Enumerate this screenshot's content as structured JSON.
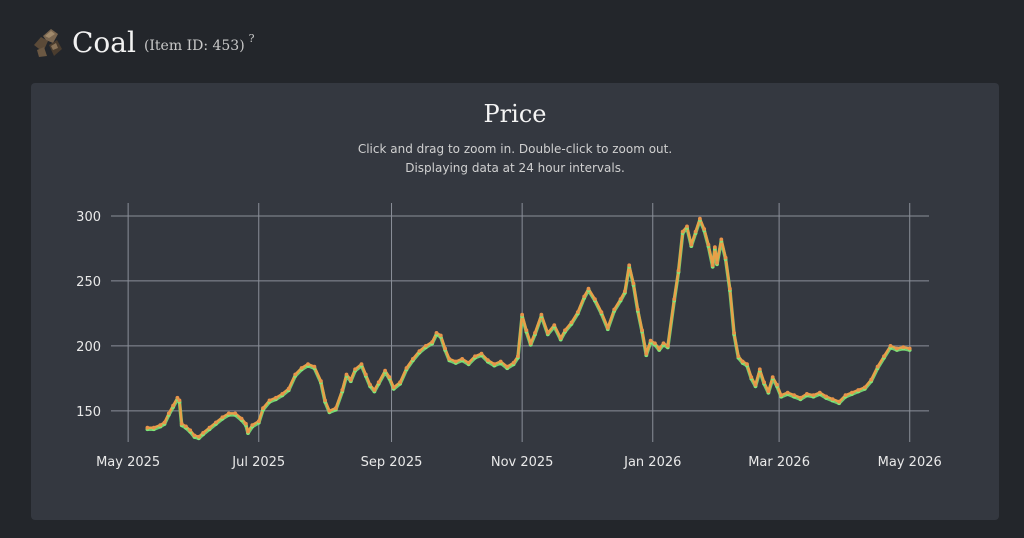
{
  "header": {
    "title": "Coal",
    "item_id_text": "(Item ID: 453)",
    "help": "?"
  },
  "panel": {
    "subtitle_line1": "Click and drag to zoom in. Double-click to zoom out.",
    "subtitle_line2": "Displaying data at 24 hour intervals."
  },
  "colors": {
    "page_bg": "#23262b",
    "panel_bg": "#343840",
    "grid": "#8a8f99",
    "line": "#e8a048",
    "marker_high": "#e8944a",
    "marker_low": "#7ee87a"
  },
  "chart_data": {
    "type": "line",
    "title": "Price",
    "xlabel": "",
    "ylabel": "",
    "ylim": [
      126,
      310
    ],
    "xlim": [
      "2025-04-23",
      "2026-05-10"
    ],
    "yticks": [
      150,
      200,
      250,
      300
    ],
    "ytick_labels": [
      "150",
      "200",
      "250",
      "300"
    ],
    "xticks": [
      "2025-05-01",
      "2025-07-01",
      "2025-09-01",
      "2025-11-01",
      "2026-01-01",
      "2026-03-01",
      "2026-05-01"
    ],
    "xtick_labels": [
      "May 2025",
      "Jul 2025",
      "Sep 2025",
      "Nov 2025",
      "Jan 2026",
      "Mar 2026",
      "May 2026"
    ],
    "grid": true,
    "legend": "none",
    "series": [
      {
        "points": [
          [
            "2025-05-10",
            137
          ],
          [
            "2025-05-13",
            137
          ],
          [
            "2025-05-16",
            139
          ],
          [
            "2025-05-18",
            141
          ],
          [
            "2025-05-20",
            148
          ],
          [
            "2025-05-22",
            154
          ],
          [
            "2025-05-24",
            160
          ],
          [
            "2025-05-25",
            158
          ],
          [
            "2025-05-26",
            140
          ],
          [
            "2025-05-28",
            138
          ],
          [
            "2025-05-30",
            135
          ],
          [
            "2025-06-01",
            131
          ],
          [
            "2025-06-03",
            130
          ],
          [
            "2025-06-05",
            133
          ],
          [
            "2025-06-08",
            137
          ],
          [
            "2025-06-11",
            141
          ],
          [
            "2025-06-14",
            145
          ],
          [
            "2025-06-17",
            148
          ],
          [
            "2025-06-20",
            148
          ],
          [
            "2025-06-23",
            144
          ],
          [
            "2025-06-25",
            140
          ],
          [
            "2025-06-26",
            134
          ],
          [
            "2025-06-28",
            139
          ],
          [
            "2025-07-01",
            142
          ],
          [
            "2025-07-03",
            152
          ],
          [
            "2025-07-06",
            158
          ],
          [
            "2025-07-09",
            160
          ],
          [
            "2025-07-12",
            163
          ],
          [
            "2025-07-15",
            167
          ],
          [
            "2025-07-18",
            178
          ],
          [
            "2025-07-21",
            183
          ],
          [
            "2025-07-24",
            186
          ],
          [
            "2025-07-27",
            184
          ],
          [
            "2025-07-30",
            173
          ],
          [
            "2025-08-01",
            158
          ],
          [
            "2025-08-03",
            150
          ],
          [
            "2025-08-06",
            152
          ],
          [
            "2025-08-09",
            166
          ],
          [
            "2025-08-11",
            178
          ],
          [
            "2025-08-13",
            174
          ],
          [
            "2025-08-15",
            182
          ],
          [
            "2025-08-18",
            186
          ],
          [
            "2025-08-20",
            178
          ],
          [
            "2025-08-22",
            170
          ],
          [
            "2025-08-24",
            166
          ],
          [
            "2025-08-26",
            172
          ],
          [
            "2025-08-29",
            181
          ],
          [
            "2025-08-31",
            176
          ],
          [
            "2025-09-02",
            168
          ],
          [
            "2025-09-05",
            172
          ],
          [
            "2025-09-08",
            183
          ],
          [
            "2025-09-11",
            190
          ],
          [
            "2025-09-14",
            196
          ],
          [
            "2025-09-17",
            200
          ],
          [
            "2025-09-20",
            203
          ],
          [
            "2025-09-22",
            210
          ],
          [
            "2025-09-24",
            208
          ],
          [
            "2025-09-26",
            198
          ],
          [
            "2025-09-28",
            190
          ],
          [
            "2025-10-01",
            188
          ],
          [
            "2025-10-04",
            190
          ],
          [
            "2025-10-07",
            187
          ],
          [
            "2025-10-10",
            192
          ],
          [
            "2025-10-13",
            194
          ],
          [
            "2025-10-16",
            189
          ],
          [
            "2025-10-19",
            186
          ],
          [
            "2025-10-22",
            188
          ],
          [
            "2025-10-25",
            184
          ],
          [
            "2025-10-28",
            187
          ],
          [
            "2025-10-30",
            192
          ],
          [
            "2025-11-01",
            224
          ],
          [
            "2025-11-03",
            212
          ],
          [
            "2025-11-05",
            202
          ],
          [
            "2025-11-07",
            210
          ],
          [
            "2025-11-10",
            224
          ],
          [
            "2025-11-13",
            210
          ],
          [
            "2025-11-16",
            216
          ],
          [
            "2025-11-19",
            206
          ],
          [
            "2025-11-21",
            212
          ],
          [
            "2025-11-24",
            218
          ],
          [
            "2025-11-27",
            226
          ],
          [
            "2025-11-30",
            238
          ],
          [
            "2025-12-02",
            244
          ],
          [
            "2025-12-05",
            236
          ],
          [
            "2025-12-08",
            226
          ],
          [
            "2025-12-11",
            214
          ],
          [
            "2025-12-14",
            228
          ],
          [
            "2025-12-17",
            236
          ],
          [
            "2025-12-19",
            242
          ],
          [
            "2025-12-21",
            262
          ],
          [
            "2025-12-23",
            248
          ],
          [
            "2025-12-25",
            228
          ],
          [
            "2025-12-27",
            212
          ],
          [
            "2025-12-29",
            194
          ],
          [
            "2025-12-31",
            204
          ],
          [
            "2026-01-02",
            202
          ],
          [
            "2026-01-04",
            198
          ],
          [
            "2026-01-06",
            202
          ],
          [
            "2026-01-08",
            200
          ],
          [
            "2026-01-11",
            236
          ],
          [
            "2026-01-13",
            258
          ],
          [
            "2026-01-15",
            288
          ],
          [
            "2026-01-17",
            292
          ],
          [
            "2026-01-19",
            278
          ],
          [
            "2026-01-21",
            288
          ],
          [
            "2026-01-23",
            298
          ],
          [
            "2026-01-25",
            290
          ],
          [
            "2026-01-27",
            278
          ],
          [
            "2026-01-29",
            262
          ],
          [
            "2026-01-30",
            276
          ],
          [
            "2026-01-31",
            264
          ],
          [
            "2026-02-02",
            282
          ],
          [
            "2026-02-04",
            268
          ],
          [
            "2026-02-06",
            244
          ],
          [
            "2026-02-08",
            210
          ],
          [
            "2026-02-10",
            192
          ],
          [
            "2026-02-12",
            188
          ],
          [
            "2026-02-14",
            186
          ],
          [
            "2026-02-16",
            176
          ],
          [
            "2026-02-18",
            170
          ],
          [
            "2026-02-20",
            182
          ],
          [
            "2026-02-22",
            172
          ],
          [
            "2026-02-24",
            165
          ],
          [
            "2026-02-26",
            176
          ],
          [
            "2026-02-28",
            170
          ],
          [
            "2026-03-02",
            162
          ],
          [
            "2026-03-05",
            164
          ],
          [
            "2026-03-08",
            162
          ],
          [
            "2026-03-11",
            160
          ],
          [
            "2026-03-14",
            163
          ],
          [
            "2026-03-17",
            162
          ],
          [
            "2026-03-20",
            164
          ],
          [
            "2026-03-23",
            161
          ],
          [
            "2026-03-26",
            159
          ],
          [
            "2026-03-29",
            157
          ],
          [
            "2026-04-01",
            162
          ],
          [
            "2026-04-04",
            164
          ],
          [
            "2026-04-07",
            166
          ],
          [
            "2026-04-10",
            168
          ],
          [
            "2026-04-13",
            174
          ],
          [
            "2026-04-16",
            184
          ],
          [
            "2026-04-19",
            192
          ],
          [
            "2026-04-22",
            200
          ],
          [
            "2026-04-25",
            198
          ],
          [
            "2026-04-28",
            199
          ],
          [
            "2026-05-01",
            198
          ]
        ]
      }
    ]
  }
}
